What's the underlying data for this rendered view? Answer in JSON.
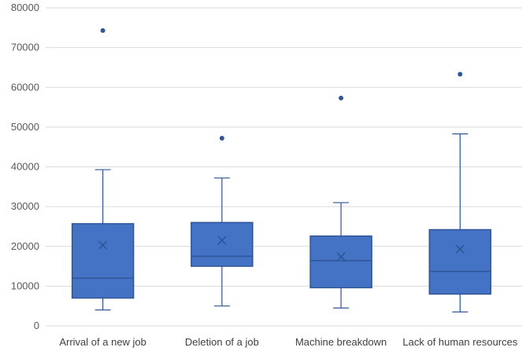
{
  "chart_data": {
    "type": "box",
    "ylim": [
      0,
      80000
    ],
    "yticks": [
      "0",
      "10000",
      "20000",
      "30000",
      "40000",
      "50000",
      "60000",
      "70000",
      "80000"
    ],
    "categories": [
      "Arrival of a new job",
      "Deletion of a job",
      "Machine breakdown",
      "Lack of human resources"
    ],
    "boxes": [
      {
        "category": "Arrival of a new job",
        "whisker_low": 4000,
        "q1": 7000,
        "median": 12000,
        "q3": 25700,
        "whisker_high": 39300,
        "mean": 20300,
        "outliers": [
          74300
        ]
      },
      {
        "category": "Deletion of a job",
        "whisker_low": 5000,
        "q1": 15000,
        "median": 17500,
        "q3": 26000,
        "whisker_high": 37200,
        "mean": 21500,
        "outliers": [
          47200
        ]
      },
      {
        "category": "Machine breakdown",
        "whisker_low": 4500,
        "q1": 9600,
        "median": 16400,
        "q3": 22600,
        "whisker_high": 31000,
        "mean": 17400,
        "outliers": [
          57300
        ]
      },
      {
        "category": "Lack of human resources",
        "whisker_low": 3500,
        "q1": 8000,
        "median": 13700,
        "q3": 24200,
        "whisker_high": 48300,
        "mean": 19300,
        "outliers": [
          63300
        ]
      }
    ],
    "grid": true,
    "colors": {
      "box_fill": "#4472C4",
      "box_stroke": "#2F5597",
      "line": "#2F5597",
      "grid": "#D9D9D9"
    }
  }
}
